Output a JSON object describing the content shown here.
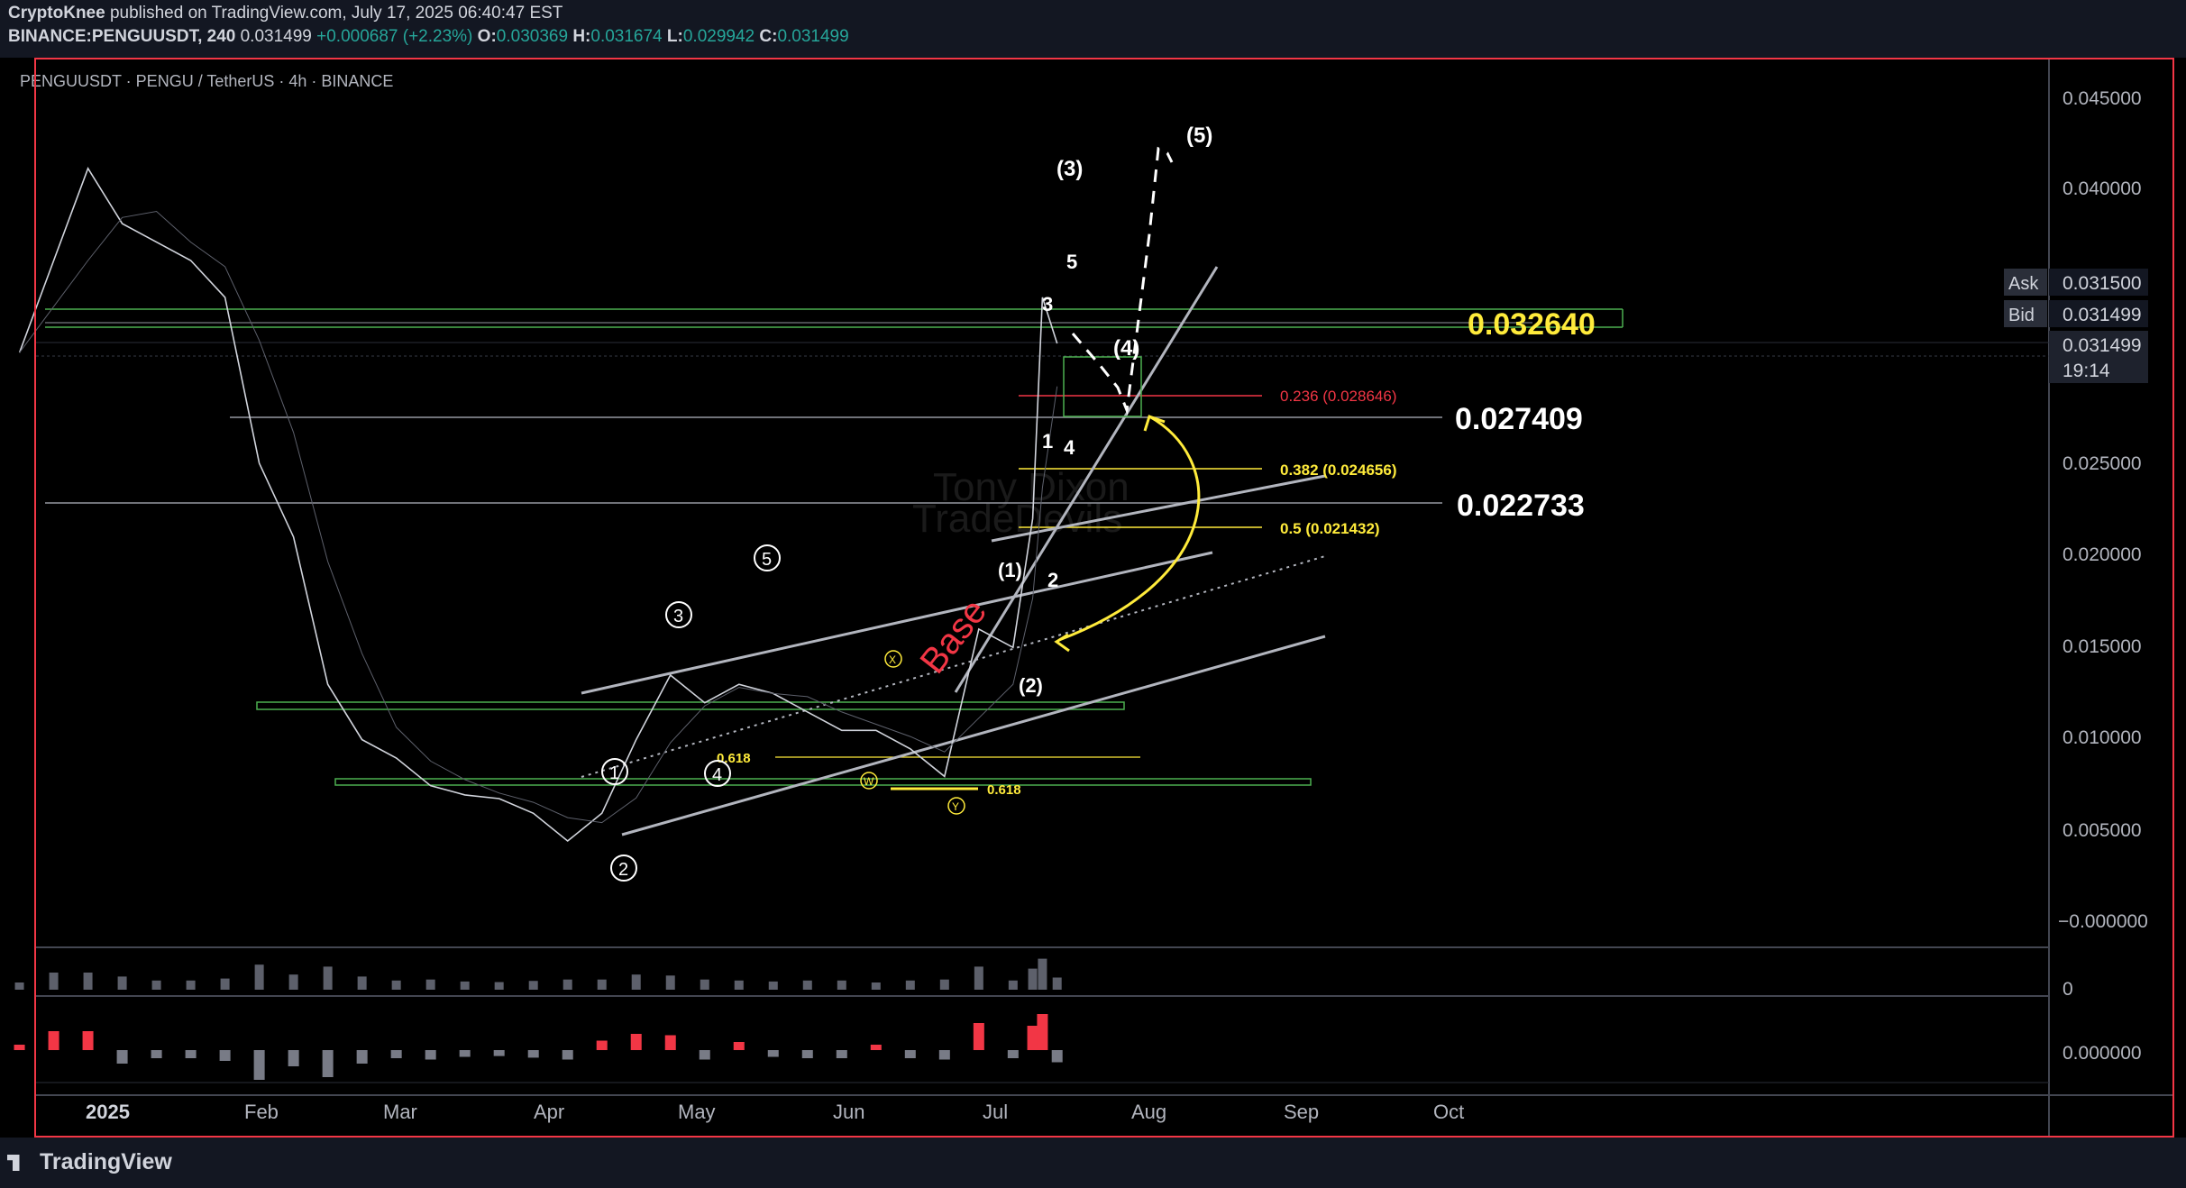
{
  "header": {
    "author": "CryptoKnee",
    "published_text": "published on TradingView.com, July 17, 2025 06:40:47 EST",
    "symbol": "BINANCE:PENGUUSDT, 240",
    "last": "0.031499",
    "change": "+0.000687 (+2.23%)",
    "o_label": "O:",
    "o": "0.030369",
    "h_label": "H:",
    "h": "0.031674",
    "l_label": "L:",
    "l": "0.029942",
    "c_label": "C:",
    "c": "0.031499"
  },
  "chart_title": "PENGUUSDT · PENGU / TetherUS · 4h · BINANCE",
  "watermark": [
    "Tony Dixon",
    "TradeDevils"
  ],
  "price_axis": {
    "ticks": [
      "0.045000",
      "0.040000",
      "0.025000",
      "0.020000",
      "0.015000",
      "0.010000",
      "0.005000",
      "−0.000000"
    ],
    "ask_label": "Ask",
    "ask": "0.031500",
    "bid_label": "Bid",
    "bid": "0.031499",
    "current_price": "0.031499",
    "countdown": "19:14",
    "volume_tick": "0",
    "osc_tick": "0.000000"
  },
  "time_axis": [
    "2025",
    "Feb",
    "Mar",
    "Apr",
    "May",
    "Jun",
    "Jul",
    "Aug",
    "Sep",
    "Oct"
  ],
  "levels": {
    "big1": "0.032640",
    "big2": "0.027409",
    "big3": "0.022733",
    "fib1": "0.236 (0.028646)",
    "fib2": "0.382 (0.024656)",
    "fib3": "0.5 (0.021432)",
    "fib_small1": "0.618",
    "fib_small2": "0.618"
  },
  "annotations": {
    "base": "Base",
    "w3p": "(3)",
    "w5p": "(5)",
    "w4p": "(4)",
    "w1p": "(1)",
    "w2p": "(2)",
    "n5": "5",
    "n3": "3",
    "n1": "1",
    "n4": "4",
    "n2": "2",
    "c1": "1",
    "c2": "2",
    "c3": "3",
    "c4": "4",
    "c5": "5",
    "x": "X",
    "w": "W",
    "y": "Y"
  },
  "brand": "TradingView",
  "colors": {
    "background": "#000000",
    "frame": "#f23645",
    "green_level": "#4caf50",
    "fib_yellow": "#ffeb3b",
    "fib_red": "#f23645",
    "price_blue": "#2962ff"
  },
  "chart_data": {
    "type": "line",
    "title": "PENGUUSDT · PENGU / TetherUS · 4h · BINANCE",
    "x": [
      "2024-12-17",
      "2024-12-24",
      "2024-12-31",
      "2025-01-07",
      "2025-01-14",
      "2025-01-21",
      "2025-01-28",
      "2025-02-04",
      "2025-02-11",
      "2025-02-18",
      "2025-02-25",
      "2025-03-04",
      "2025-03-11",
      "2025-03-18",
      "2025-03-25",
      "2025-04-01",
      "2025-04-08",
      "2025-04-15",
      "2025-04-22",
      "2025-04-29",
      "2025-05-06",
      "2025-05-13",
      "2025-05-20",
      "2025-05-27",
      "2025-06-03",
      "2025-06-10",
      "2025-06-17",
      "2025-06-24",
      "2025-07-01",
      "2025-07-08",
      "2025-07-12",
      "2025-07-14",
      "2025-07-17"
    ],
    "series": [
      {
        "values": [
          0.031,
          0.036,
          0.041,
          0.038,
          0.037,
          0.036,
          0.034,
          0.025,
          0.021,
          0.013,
          0.01,
          0.009,
          0.0075,
          0.007,
          0.0068,
          0.006,
          0.0045,
          0.006,
          0.01,
          0.0135,
          0.012,
          0.013,
          0.0125,
          0.0115,
          0.0105,
          0.0105,
          0.0095,
          0.008,
          0.016,
          0.015,
          0.022,
          0.034,
          0.0315
        ]
      }
    ],
    "ylim": [
      0,
      0.047
    ],
    "grid": false,
    "levels": [
      0.03264,
      0.027409,
      0.022733,
      0.028646,
      0.024656,
      0.021432
    ]
  }
}
